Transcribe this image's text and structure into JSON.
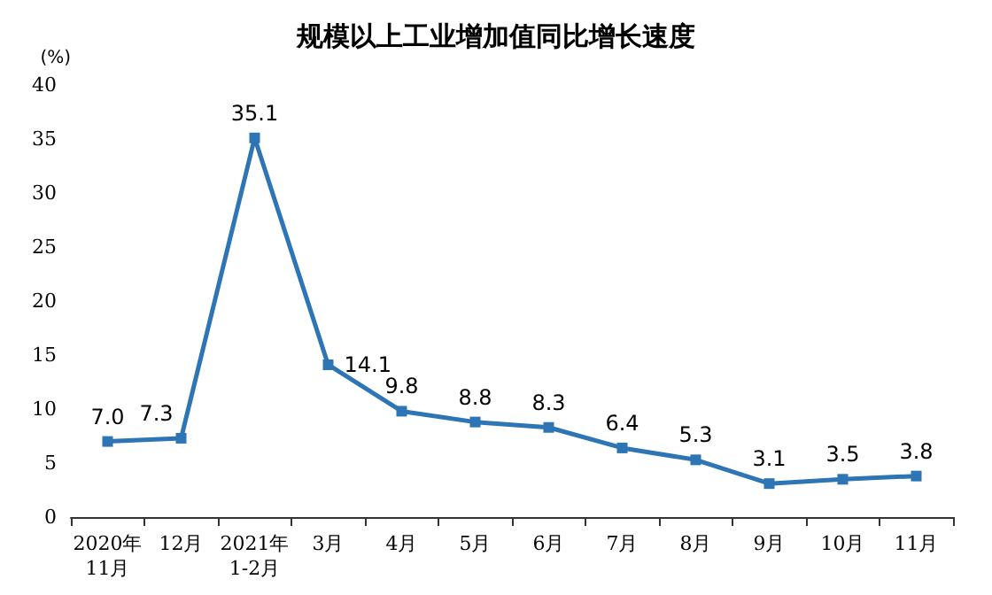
{
  "chart_data": {
    "type": "line",
    "title": "规模以上工业增加值同比增长速度",
    "ylabel": "(%)",
    "categories": [
      "2020年\n11月",
      "12月",
      "2021年\n1-2月",
      "3月",
      "4月",
      "5月",
      "6月",
      "7月",
      "8月",
      "9月",
      "10月",
      "11月"
    ],
    "series": [
      {
        "color": "#2e75b6",
        "values": [
          7.0,
          7.3,
          35.1,
          14.1,
          9.8,
          8.8,
          8.3,
          6.4,
          5.3,
          3.1,
          3.5,
          3.8
        ],
        "value_labels": [
          "7.0",
          "7.3",
          "35.1",
          "14.1",
          "9.8",
          "8.8",
          "8.3",
          "6.4",
          "5.3",
          "3.1",
          "3.5",
          "3.8"
        ]
      }
    ],
    "ylim": [
      0,
      40
    ],
    "yticks": [
      0,
      5,
      10,
      15,
      20,
      25,
      30,
      35,
      40
    ],
    "marker": "square",
    "line_style": "solid",
    "grid": false
  }
}
